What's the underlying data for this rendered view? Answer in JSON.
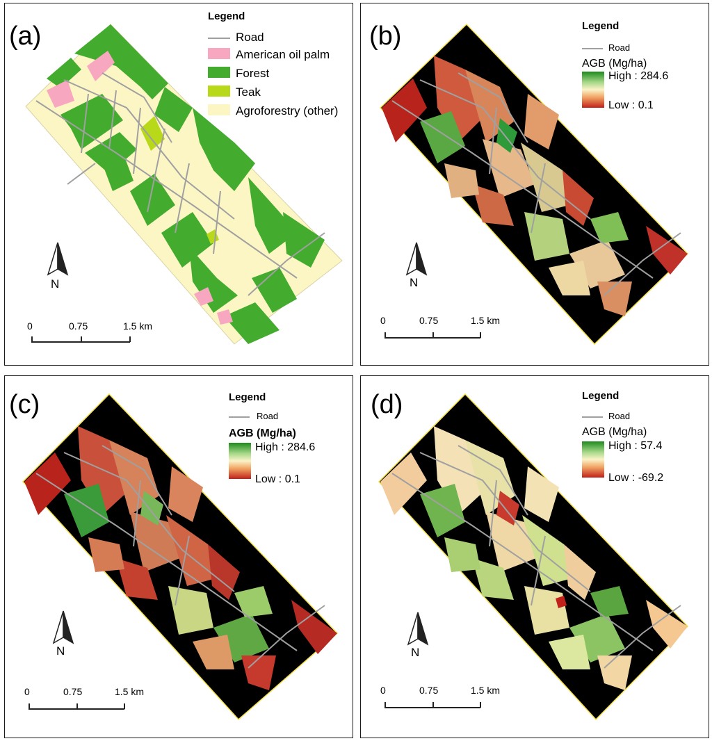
{
  "panels": [
    {
      "id": "a",
      "label": "(a)",
      "legend": {
        "title": "Legend",
        "items": [
          {
            "label": "Road",
            "color": "#a0a0a0",
            "kind": "line"
          },
          {
            "label": "American oil palm",
            "color": "#f7a8c0",
            "kind": "fill"
          },
          {
            "label": "Forest",
            "color": "#43ac2f",
            "kind": "fill"
          },
          {
            "label": "Teak",
            "color": "#b8d81a",
            "kind": "fill"
          },
          {
            "label": "Agroforestry (other)",
            "color": "#fcf6c4",
            "kind": "fill"
          }
        ]
      },
      "scale_bar": {
        "ticks": [
          "0",
          "0.75",
          "1.5 km"
        ]
      },
      "north": "N"
    },
    {
      "id": "b",
      "label": "(b)",
      "legend": {
        "title": "Legend",
        "road": "Road",
        "ramp_title": "AGB (Mg/ha)",
        "high": "High : 284.6",
        "low": "Low : 0.1"
      },
      "scale_bar": {
        "ticks": [
          "0",
          "0.75",
          "1.5 km"
        ]
      },
      "north": "N"
    },
    {
      "id": "c",
      "label": "(c)",
      "legend": {
        "title": "Legend",
        "road": "Road",
        "ramp_title": "AGB (Mg/ha)",
        "high": "High : 284.6",
        "low": "Low : 0.1"
      },
      "scale_bar": {
        "ticks": [
          "0",
          "0.75",
          "1.5 km"
        ]
      },
      "north": "N"
    },
    {
      "id": "d",
      "label": "(d)",
      "legend": {
        "title": "Legend",
        "road": "Road",
        "ramp_title": "AGB (Mg/ha)",
        "high": "High : 57.4",
        "low": "Low : -69.2"
      },
      "scale_bar": {
        "ticks": [
          "0",
          "0.75",
          "1.5 km"
        ]
      },
      "north": "N"
    }
  ],
  "colors": {
    "road": "#a0a0a0",
    "background_mask": "#000000",
    "ramp_high": "#1e8a1e",
    "ramp_mid": "#fbf3c8",
    "ramp_low": "#c0201a",
    "boundary": "#f5e04a"
  }
}
